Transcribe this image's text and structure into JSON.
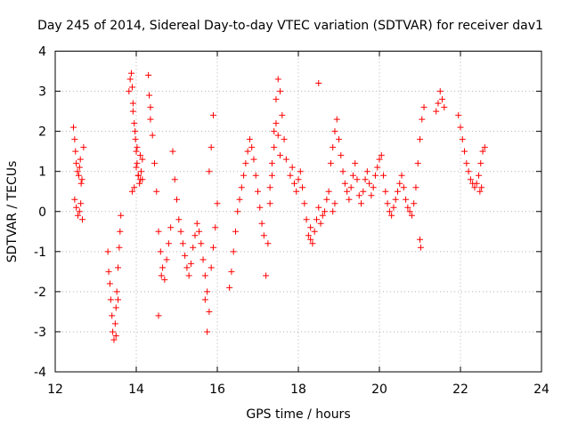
{
  "chart_data": {
    "type": "scatter",
    "title": "Day 245 of 2014, Sidereal Day-to-day VTEC variation (SDTVAR) for receiver dav1",
    "xlabel": "GPS time / hours",
    "ylabel": "SDTVAR / TECUs",
    "xlim": [
      12,
      24
    ],
    "ylim": [
      -4,
      4
    ],
    "xticks": [
      "12",
      "14",
      "16",
      "18",
      "20",
      "22",
      "24"
    ],
    "yticks": [
      "4",
      "3",
      "2",
      "1",
      "0",
      "-1",
      "-2",
      "-3",
      "-4"
    ],
    "grid": true,
    "marker": "+",
    "marker_color": "#ff0000",
    "series": [
      {
        "name": "SDTVAR",
        "x": [
          12.45,
          12.48,
          12.5,
          12.52,
          12.55,
          12.58,
          12.6,
          12.62,
          12.64,
          12.66,
          12.7,
          12.48,
          12.52,
          12.56,
          12.6,
          12.63,
          12.67,
          13.3,
          13.32,
          13.35,
          13.37,
          13.4,
          13.42,
          13.45,
          13.48,
          13.5,
          13.52,
          13.55,
          13.58,
          13.6,
          13.62,
          13.5,
          13.55,
          13.82,
          13.85,
          13.88,
          13.9,
          13.92,
          13.95,
          13.98,
          14.0,
          14.02,
          14.05,
          14.08,
          14.1,
          14.12,
          14.15,
          13.9,
          13.95,
          14.0,
          14.05,
          14.1,
          14.15,
          13.92,
          13.97,
          14.02,
          14.3,
          14.32,
          14.35,
          14.4,
          14.45,
          14.5,
          14.55,
          14.6,
          14.65,
          14.7,
          14.75,
          14.8,
          14.85,
          14.55,
          14.62,
          14.35,
          14.9,
          14.95,
          15.0,
          15.05,
          15.1,
          15.15,
          15.2,
          15.25,
          15.3,
          15.35,
          15.4,
          15.45,
          15.5,
          15.55,
          15.6,
          15.65,
          15.7,
          15.75,
          15.8,
          15.85,
          15.9,
          15.95,
          16.0,
          15.75,
          15.7,
          15.8,
          15.85,
          15.9,
          16.3,
          16.35,
          16.4,
          16.45,
          16.5,
          16.55,
          16.6,
          16.65,
          16.7,
          16.75,
          16.8,
          16.85,
          16.9,
          16.95,
          17.0,
          17.05,
          17.1,
          17.15,
          17.2,
          17.25,
          17.3,
          17.35,
          17.4,
          17.45,
          17.5,
          17.55,
          17.6,
          17.65,
          17.7,
          17.4,
          17.45,
          17.5,
          17.55,
          17.3,
          17.35,
          17.8,
          17.85,
          17.9,
          17.95,
          18.0,
          18.05,
          18.1,
          18.15,
          18.2,
          18.25,
          18.3,
          18.35,
          18.4,
          18.45,
          18.5,
          18.55,
          18.6,
          18.65,
          18.7,
          18.75,
          18.3,
          18.5,
          18.8,
          18.85,
          18.9,
          18.95,
          19.0,
          19.05,
          19.1,
          19.15,
          19.2,
          19.25,
          19.3,
          19.35,
          19.4,
          19.45,
          19.5,
          19.55,
          19.6,
          19.65,
          19.7,
          19.75,
          19.8,
          19.85,
          19.9,
          19.95,
          18.85,
          18.9,
          20.0,
          20.05,
          20.1,
          20.15,
          20.2,
          20.25,
          20.3,
          20.35,
          20.4,
          20.45,
          20.5,
          20.55,
          20.6,
          20.65,
          20.7,
          20.75,
          20.8,
          20.85,
          20.9,
          20.95,
          21.0,
          21.05,
          21.1,
          21.0,
          21.02,
          21.4,
          21.45,
          21.5,
          21.55,
          21.6,
          21.95,
          22.0,
          22.05,
          22.1,
          22.15,
          22.2,
          22.25,
          22.3,
          22.35,
          22.4,
          22.45,
          22.5,
          22.55,
          22.6,
          22.48,
          22.52
        ],
        "y": [
          2.1,
          1.8,
          1.5,
          1.2,
          1.0,
          0.9,
          1.1,
          1.3,
          0.7,
          0.8,
          1.6,
          0.3,
          0.1,
          -0.1,
          0.0,
          0.2,
          -0.2,
          -1.0,
          -1.5,
          -1.8,
          -2.2,
          -2.6,
          -3.0,
          -3.2,
          -2.8,
          -2.4,
          -2.0,
          -1.4,
          -0.9,
          -0.5,
          -0.1,
          -3.1,
          -2.2,
          3.0,
          3.3,
          3.45,
          3.1,
          2.7,
          2.2,
          1.8,
          1.5,
          1.2,
          0.9,
          0.7,
          0.8,
          1.0,
          1.3,
          0.5,
          0.6,
          1.1,
          0.9,
          1.4,
          0.8,
          2.5,
          2.0,
          1.6,
          3.4,
          2.9,
          2.6,
          1.9,
          1.2,
          0.5,
          -0.5,
          -1.0,
          -1.4,
          -1.7,
          -1.2,
          -0.8,
          -0.4,
          -2.6,
          -1.6,
          2.3,
          1.5,
          0.8,
          0.3,
          -0.2,
          -0.5,
          -0.8,
          -1.1,
          -1.4,
          -1.6,
          -1.3,
          -0.9,
          -0.6,
          -0.3,
          -0.5,
          -0.8,
          -1.2,
          -1.6,
          -2.0,
          -2.5,
          -1.4,
          -0.9,
          -0.4,
          0.2,
          -3.0,
          -2.2,
          1.0,
          1.6,
          2.4,
          -1.9,
          -1.5,
          -1.0,
          -0.5,
          0.0,
          0.3,
          0.6,
          0.9,
          1.2,
          1.5,
          1.8,
          1.6,
          1.3,
          0.9,
          0.5,
          0.1,
          -0.3,
          -0.6,
          -1.6,
          -0.8,
          0.2,
          1.2,
          2.0,
          2.8,
          3.3,
          3.0,
          2.4,
          1.8,
          1.3,
          1.6,
          2.2,
          1.9,
          1.4,
          0.6,
          0.9,
          0.9,
          1.1,
          0.7,
          0.5,
          0.8,
          1.0,
          0.6,
          0.2,
          -0.2,
          -0.6,
          -0.4,
          -0.8,
          -0.5,
          -0.2,
          0.1,
          -0.3,
          -0.1,
          0.0,
          0.3,
          0.5,
          -0.7,
          3.2,
          1.2,
          1.6,
          2.0,
          2.3,
          1.8,
          1.4,
          1.0,
          0.7,
          0.5,
          0.3,
          0.6,
          0.9,
          1.2,
          0.8,
          0.4,
          0.2,
          0.5,
          0.8,
          1.0,
          0.7,
          0.4,
          0.6,
          0.9,
          1.1,
          0.0,
          0.2,
          1.3,
          1.4,
          0.9,
          0.5,
          0.2,
          0.0,
          -0.1,
          0.1,
          0.3,
          0.5,
          0.7,
          0.9,
          0.6,
          0.3,
          0.1,
          0.0,
          -0.1,
          0.2,
          0.6,
          1.2,
          1.8,
          2.3,
          2.6,
          -0.7,
          -0.9,
          2.5,
          2.7,
          3.0,
          2.8,
          2.6,
          2.4,
          2.1,
          1.8,
          1.5,
          1.2,
          1.0,
          0.8,
          0.7,
          0.6,
          0.7,
          0.9,
          1.2,
          1.5,
          1.6,
          0.5,
          0.6
        ]
      }
    ]
  }
}
